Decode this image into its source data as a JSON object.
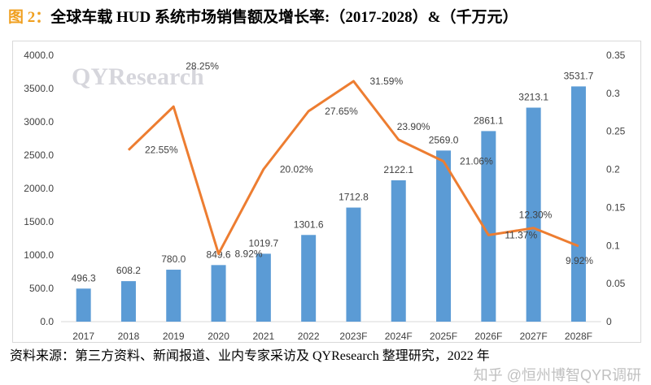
{
  "title": {
    "figure_label": "图 2：",
    "text": "全球车载 HUD 系统市场销售额及增长率:（2017-2028）&（千万元）"
  },
  "chart_data": {
    "type": "bar+line",
    "categories": [
      "2017",
      "2018",
      "2019",
      "2020",
      "2021",
      "2022",
      "2023F",
      "2024F",
      "2025F",
      "2026F",
      "2027F",
      "2028F"
    ],
    "series": [
      {
        "type": "bar",
        "axis": "left",
        "values": [
          496.3,
          608.2,
          780.0,
          849.6,
          1019.7,
          1301.6,
          1712.8,
          2122.1,
          2569.0,
          2861.1,
          3213.1,
          3531.7
        ],
        "labels": [
          "496.3",
          "608.2",
          "780.0",
          "849.6",
          "1019.7",
          "1301.6",
          "1712.8",
          "2122.1",
          "2569.0",
          "2861.1",
          "3213.1",
          "3531.7"
        ],
        "color": "#5b9bd5"
      },
      {
        "type": "line",
        "axis": "right",
        "values": [
          null,
          0.2255,
          0.2825,
          0.0892,
          0.2002,
          0.2765,
          0.3159,
          0.239,
          0.2106,
          0.1137,
          0.123,
          0.0992
        ],
        "labels": [
          "",
          "22.55%",
          "28.25%",
          "8.92%",
          "20.02%",
          "27.65%",
          "31.59%",
          "23.90%",
          "21.06%",
          "11.37%",
          "12.30%",
          "9.92%"
        ],
        "color": "#ed7d31"
      }
    ],
    "left_axis": {
      "ylim": [
        0,
        4000
      ],
      "ticks": [
        "0.0",
        "500.0",
        "1000.0",
        "1500.0",
        "2000.0",
        "2500.0",
        "3000.0",
        "3500.0",
        "4000.0"
      ]
    },
    "right_axis": {
      "ylim": [
        0,
        0.35
      ],
      "ticks": [
        "0",
        "0.05",
        "0.1",
        "0.15",
        "0.2",
        "0.25",
        "0.3",
        "0.35"
      ]
    },
    "grid": false,
    "watermark": "QYResearch"
  },
  "footer": {
    "source": "资料来源：第三方资料、新闻报道、业内专家采访及 QYResearch 整理研究，2022 年",
    "watermark": "知乎 @恒州博智QYR调研"
  }
}
